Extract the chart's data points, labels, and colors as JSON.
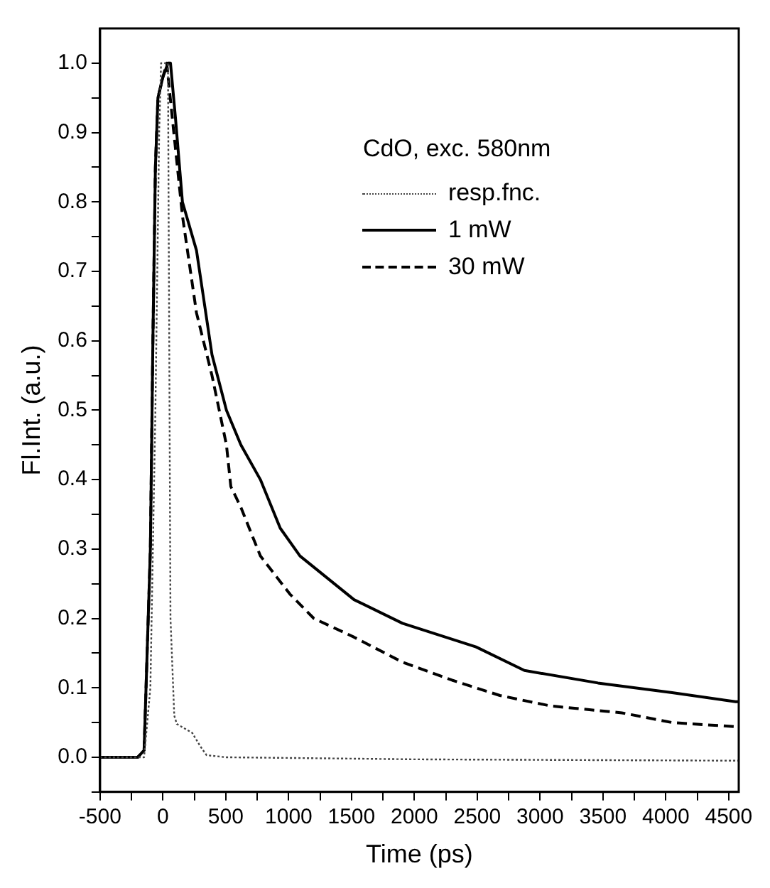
{
  "chart_data": {
    "type": "line",
    "xlabel": "Time (ps)",
    "ylabel": "Fl.Int. (a.u.)",
    "legend_title": "CdO, exc. 580nm",
    "legend": "top right",
    "grid": false,
    "marker": "none",
    "xlim": [
      -500,
      4580
    ],
    "ylim": [
      -0.05,
      1.05
    ],
    "xticks": [
      -500,
      {
        "value": -250,
        "label": null
      },
      0,
      {
        "value": 250,
        "label": null
      },
      500,
      {
        "value": 750,
        "label": null
      },
      1000,
      {
        "value": 1250,
        "label": null
      },
      1500,
      {
        "value": 1750,
        "label": null
      },
      2000,
      {
        "value": 2250,
        "label": null
      },
      2500,
      {
        "value": 2750,
        "label": null
      },
      3000,
      {
        "value": 3250,
        "label": null
      },
      3500,
      {
        "value": 3750,
        "label": null
      },
      4000,
      {
        "value": 4250,
        "label": null
      },
      4500
    ],
    "yticks": [
      {
        "value": -0.05,
        "label": null
      },
      {
        "value": 0,
        "label": "0.0"
      },
      {
        "value": 0.05,
        "label": null
      },
      0.1,
      {
        "value": 0.15,
        "label": null
      },
      0.2,
      {
        "value": 0.25,
        "label": null
      },
      0.3,
      {
        "value": 0.35,
        "label": null
      },
      0.4,
      {
        "value": 0.45,
        "label": null
      },
      0.5,
      {
        "value": 0.55,
        "label": null
      },
      0.6,
      {
        "value": 0.65,
        "label": null
      },
      0.7,
      {
        "value": 0.75,
        "label": null
      },
      0.8,
      {
        "value": 0.85,
        "label": null
      },
      0.9,
      {
        "value": 0.95,
        "label": null
      },
      {
        "value": 1,
        "label": "1.0"
      }
    ],
    "series": [
      {
        "name": "resp.fnc.",
        "color": "#444444",
        "line_style": "dotted",
        "x": [
          -500,
          -150,
          -100,
          -60,
          -30,
          -15,
          40,
          60,
          90,
          110,
          233,
          300,
          347,
          500,
          2000,
          4580
        ],
        "values": [
          0,
          0,
          0.1,
          0.5,
          0.9,
          1.0,
          1.0,
          0.2,
          0.06,
          0.048,
          0.035,
          0.015,
          0.003,
          0,
          -0.003,
          -0.005
        ]
      },
      {
        "name": "1 mW",
        "color": "#000000",
        "line_style": "solid",
        "x": [
          -500,
          -200,
          -150,
          -100,
          -80,
          -60,
          -40,
          0,
          40,
          60,
          100,
          155,
          267,
          390,
          505,
          620,
          775,
          933,
          1090,
          1520,
          1905,
          2490,
          2875,
          3460,
          4050,
          4555,
          4580
        ],
        "values": [
          0,
          0,
          0.01,
          0.3,
          0.6,
          0.85,
          0.95,
          0.98,
          1.0,
          1.0,
          0.92,
          0.8,
          0.73,
          0.58,
          0.5,
          0.45,
          0.4,
          0.33,
          0.29,
          0.227,
          0.193,
          0.159,
          0.125,
          0.107,
          0.093,
          0.08,
          0.08
        ]
      },
      {
        "name": "30 mW",
        "color": "#000000",
        "line_style": "dashed",
        "x": [
          -500,
          -200,
          -150,
          -100,
          -80,
          -60,
          -40,
          0,
          30,
          75,
          155,
          267,
          390,
          505,
          540,
          620,
          775,
          1010,
          1200,
          1520,
          1905,
          2300,
          2680,
          3080,
          3650,
          4050,
          4555,
          4580
        ],
        "values": [
          0,
          0,
          0.01,
          0.3,
          0.6,
          0.85,
          0.95,
          0.98,
          1.0,
          0.92,
          0.78,
          0.64,
          0.55,
          0.45,
          0.39,
          0.36,
          0.29,
          0.235,
          0.2,
          0.173,
          0.137,
          0.111,
          0.089,
          0.074,
          0.064,
          0.05,
          0.044,
          0.045
        ]
      }
    ]
  }
}
